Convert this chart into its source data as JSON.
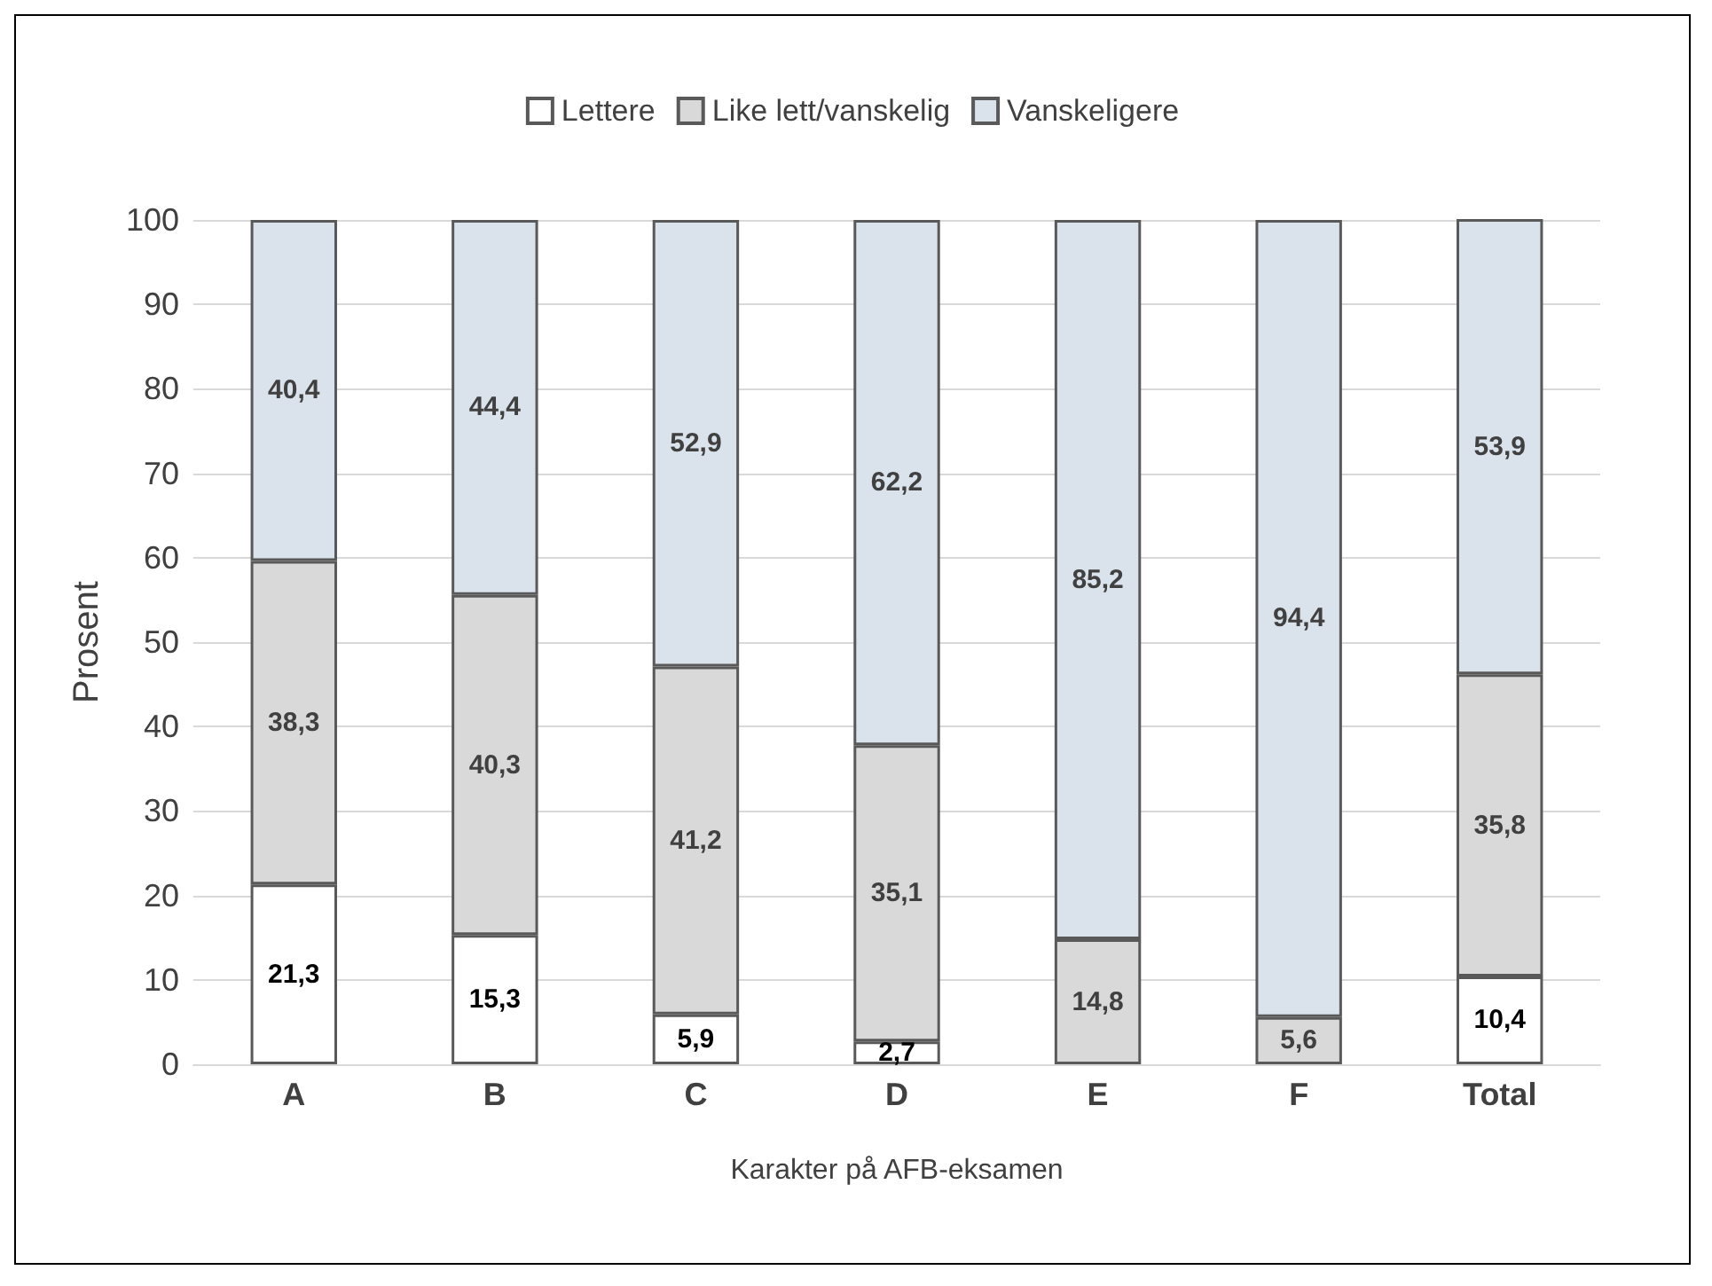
{
  "chart_data": {
    "type": "bar",
    "stacked": true,
    "xlabel": "Karakter på AFB-eksamen",
    "ylabel": "Prosent",
    "categories": [
      "A",
      "B",
      "C",
      "D",
      "E",
      "F",
      "Total"
    ],
    "series": [
      {
        "name": "Lettere",
        "color": "#ffffff",
        "values": [
          21.3,
          15.3,
          5.9,
          2.7,
          null,
          null,
          10.4
        ],
        "value_labels": [
          "21,3",
          "15,3",
          "5,9",
          "2,7",
          null,
          null,
          "10,4"
        ]
      },
      {
        "name": "Like lett/vanskelig",
        "color": "#d9d9d9",
        "values": [
          38.3,
          40.3,
          41.2,
          35.1,
          14.8,
          5.6,
          35.8
        ],
        "value_labels": [
          "38,3",
          "40,3",
          "41,2",
          "35,1",
          "14,8",
          "5,6",
          "35,8"
        ]
      },
      {
        "name": "Vanskeligere",
        "color": "#dae3eb",
        "values": [
          40.4,
          44.4,
          52.9,
          62.2,
          85.2,
          94.4,
          53.9
        ],
        "value_labels": [
          "40,4",
          "44,4",
          "52,9",
          "62,2",
          "85,2",
          "94,4",
          "53,9"
        ]
      }
    ],
    "ylim": [
      0,
      100
    ],
    "yticks": [
      0,
      10,
      20,
      30,
      40,
      50,
      60,
      70,
      80,
      90,
      100
    ],
    "grid": "y",
    "legend": "top"
  }
}
